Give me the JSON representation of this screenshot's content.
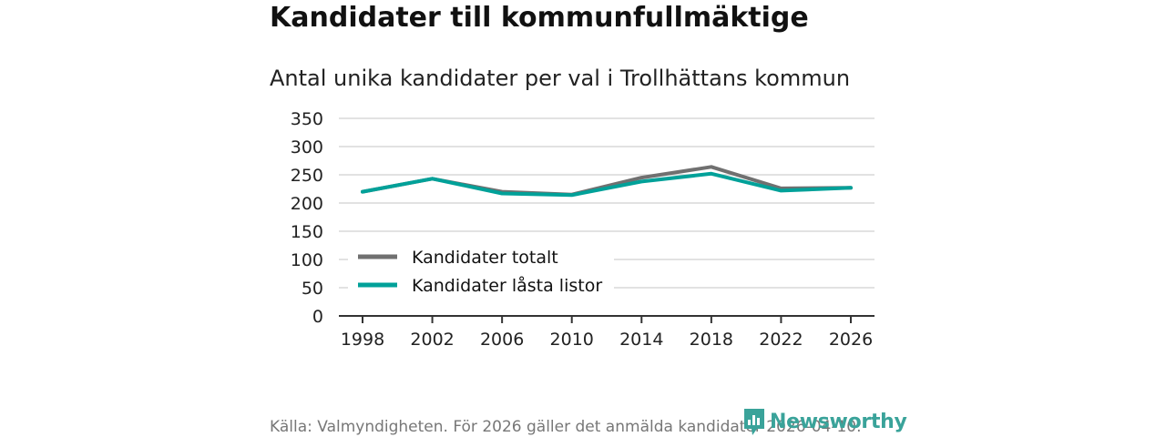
{
  "title": "Kandidater till kommunfullmäktige",
  "subtitle": "Antal unika kandidater per val i Trollhättans kommun",
  "source": "Källa: Valmyndigheten. För 2026 gäller det anmälda kandidater 2026-04-10.",
  "brand": {
    "name": "Newsworthy",
    "icon": "newsworthy-logo-icon",
    "color": "#3aa39a"
  },
  "chart_data": {
    "type": "line",
    "categories": [
      "1998",
      "2002",
      "2006",
      "2010",
      "2014",
      "2018",
      "2022",
      "2026"
    ],
    "series": [
      {
        "name": "Kandidater totalt",
        "color": "#707070",
        "values": [
          220,
          243,
          220,
          215,
          245,
          264,
          226,
          227
        ]
      },
      {
        "name": "Kandidater låsta listor",
        "color": "#00a199",
        "values": [
          220,
          243,
          217,
          214,
          238,
          252,
          222,
          227
        ]
      }
    ],
    "yticks": [
      0,
      50,
      100,
      150,
      200,
      250,
      300,
      350
    ],
    "ylim": [
      0,
      350
    ],
    "xlabel": "",
    "ylabel": "",
    "grid": true,
    "legend": "bottom-left"
  }
}
